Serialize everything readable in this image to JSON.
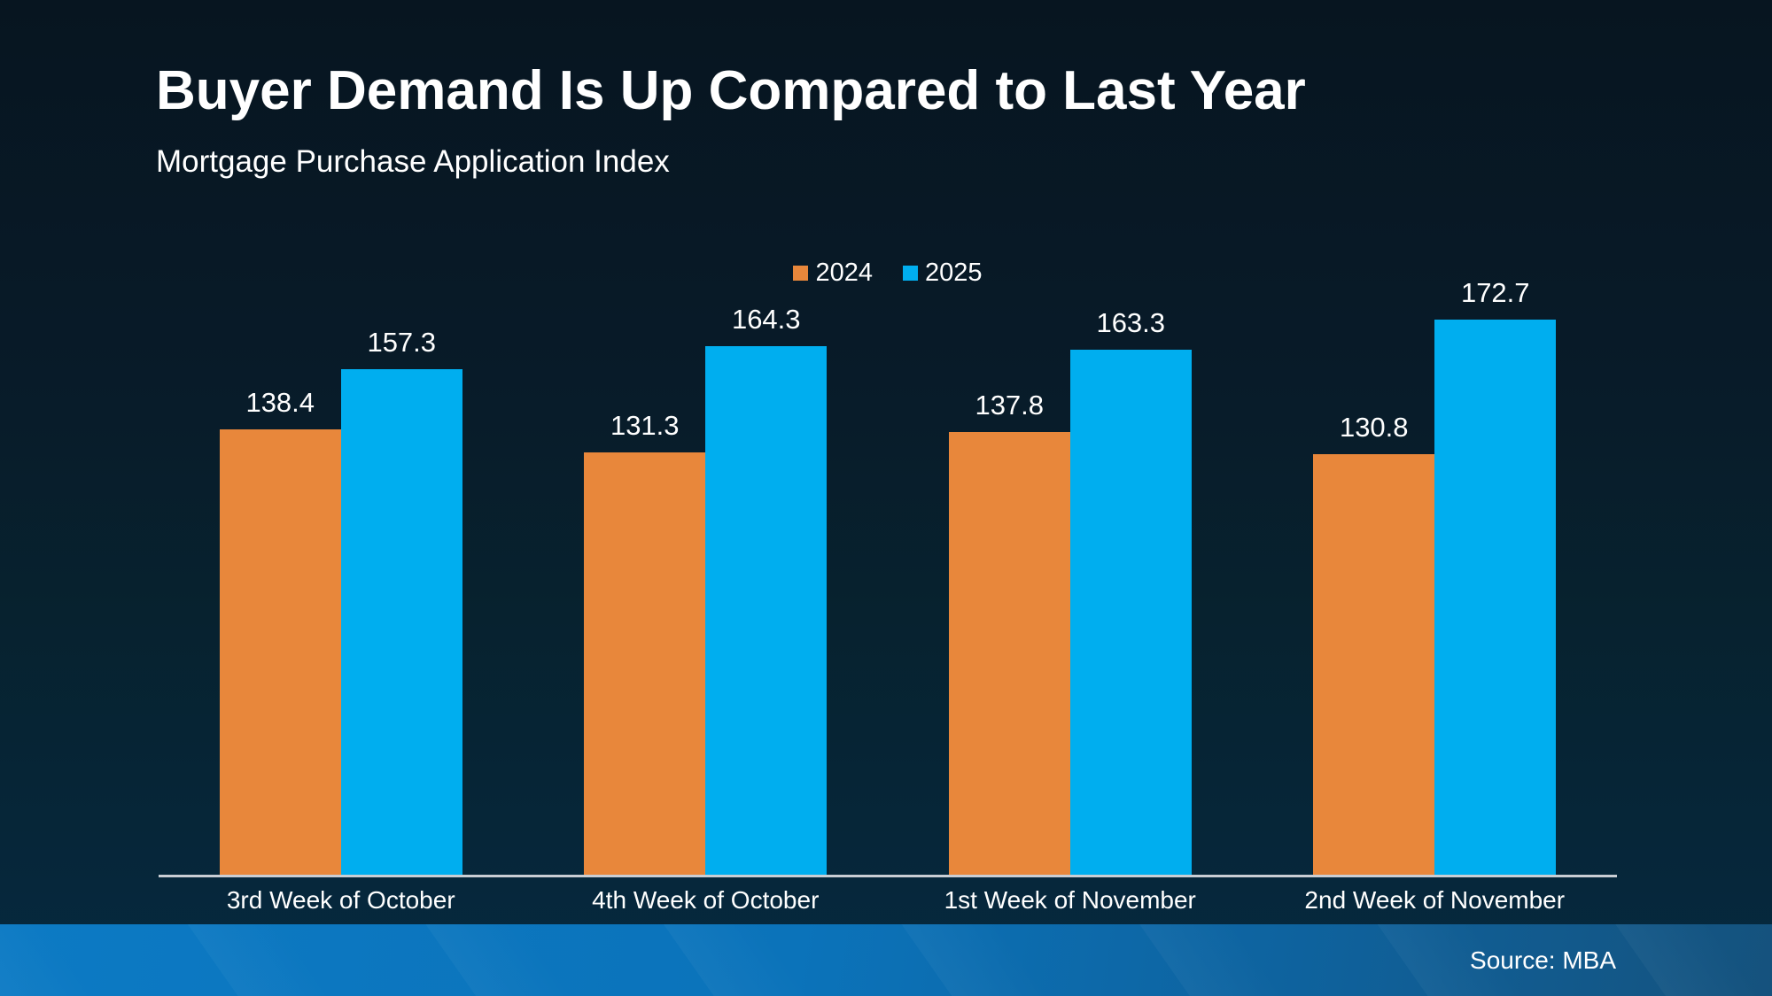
{
  "header": {
    "title": "Buyer Demand Is Up Compared to Last Year",
    "subtitle": "Mortgage Purchase Application Index"
  },
  "footer": {
    "source": "Source: MBA"
  },
  "colors": {
    "background_top": "#071520",
    "background_bottom": "#052940",
    "series_2024": "#E8873B",
    "series_2025": "#00AEEF",
    "axis_line": "#C9CED4",
    "text": "#FFFFFF",
    "footer_bar_left": "#0C7AC4",
    "footer_bar_right": "#15527D"
  },
  "chart_data": {
    "type": "bar",
    "title": "Buyer Demand Is Up Compared to Last Year",
    "subtitle": "Mortgage Purchase Application Index",
    "categories": [
      "3rd Week of October",
      "4th Week of October",
      "1st Week of November",
      "2nd Week of November"
    ],
    "series": [
      {
        "name": "2024",
        "color": "#E8873B",
        "values": [
          138.4,
          131.3,
          137.8,
          130.8
        ]
      },
      {
        "name": "2025",
        "color": "#00AEEF",
        "values": [
          157.3,
          164.3,
          163.3,
          172.7
        ]
      }
    ],
    "ylim": [
      0,
      192
    ],
    "grid": false,
    "legend_position": "top-center",
    "value_labels": true,
    "source": "Source: MBA"
  }
}
